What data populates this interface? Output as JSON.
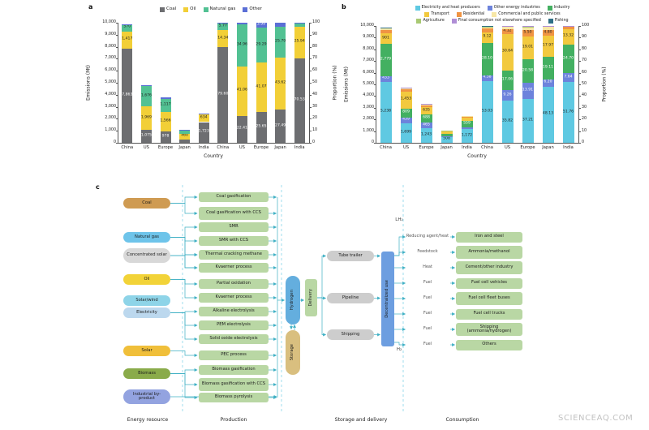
{
  "watermark": "SCIENCEAQ.COM",
  "panel_a": {
    "label": "a"
  },
  "panel_b": {
    "label": "b"
  },
  "panel_c": {
    "label": "c",
    "column_captions": [
      "Energy resource",
      "Production",
      "Storage and delivery",
      "Consumption"
    ],
    "phase_labels": {
      "lh2": "LH₂",
      "h2": "H₂"
    },
    "energy_resources": [
      {
        "label": "Coal",
        "color": "#cf9b52"
      },
      {
        "label": "Natural gas",
        "color": "#6ec4ea"
      },
      {
        "label": "Concentrated solar",
        "color": "#d8d8d8"
      },
      {
        "label": "Oil",
        "color": "#f2d338"
      },
      {
        "label": "Solar/wind",
        "color": "#8ed4e8"
      },
      {
        "label": "Electricity",
        "color": "#bcd8ee"
      },
      {
        "label": "Solar",
        "color": "#f0bf3a"
      },
      {
        "label": "Biomass",
        "color": "#8aab4a"
      },
      {
        "label": "Industrial by-product",
        "color": "#93a3e0"
      }
    ],
    "production_processes": [
      "Coal gasification",
      "Coal gasification with CCS",
      "SMR",
      "SMR with CCS",
      "Thermal cracking methane",
      "Kvaerner process",
      "Partial oxidation",
      "Kvaerner process",
      "Alkaline electrolysis",
      "PEM electrolysis",
      "Solid oxide electrolysis",
      "PEC process",
      "Biomass gasification",
      "Biomass gasification with CCS",
      "Biomass pyrolysis"
    ],
    "carrier": {
      "hydrogen": "Hydrogen",
      "delivery": "Delivery",
      "storage": "Storage"
    },
    "transport_modes": [
      "Tube trailer",
      "Pipeline",
      "Shipping"
    ],
    "decentralized_use": "Decentralized use",
    "consumption": [
      {
        "input": "Reducing agent/heat",
        "use": "Iron and steel"
      },
      {
        "input": "Feedstock",
        "use": "Ammonia/methanol"
      },
      {
        "input": "Heat",
        "use": "Cement/other industry"
      },
      {
        "input": "Fuel",
        "use": "Fuel cell vehicles"
      },
      {
        "input": "Fuel",
        "use": "Fuel cell fleet buses"
      },
      {
        "input": "Fuel",
        "use": "Fuel cell trucks"
      },
      {
        "input": "Fuel",
        "use": "Shipping (ammonia/hydrogen)"
      },
      {
        "input": "Fuel",
        "use": "Others"
      }
    ]
  },
  "chart_data": [
    {
      "panel": "a",
      "type": "bar",
      "stacked": true,
      "bar_groups": [
        "absolute emissions (Mt)",
        "proportion (%)"
      ],
      "categories": [
        "China",
        "US",
        "Europe",
        "Japan",
        "India"
      ],
      "xlabel": "Country",
      "ylabel_left": "Emissions (Mt)",
      "ylabel_right": "Proportion (%)",
      "ylim_left": [
        0,
        10000
      ],
      "ylim_right": [
        0,
        100
      ],
      "legend_position": "top",
      "series": [
        {
          "name": "Coal",
          "color": "#6d6e71",
          "values_mt": [
            7863,
            1075,
            978,
            290,
            1723
          ],
          "values_pct": [
            79.6,
            22.41,
            25.65,
            27.49,
            70.53
          ]
        },
        {
          "name": "Oil",
          "color": "#f2cf37",
          "values_mt": [
            1417,
            1969,
            1566,
            460,
            634
          ],
          "values_pct": [
            14.34,
            41.06,
            41.07,
            43.62,
            25.94
          ]
        },
        {
          "name": "Natural gas",
          "color": "#52c193",
          "values_mt": [
            570,
            1676,
            1117,
            272,
            75
          ],
          "values_pct": [
            5.77,
            34.96,
            29.29,
            25.79,
            3.08
          ]
        },
        {
          "name": "Other",
          "color": "#5b6fd6",
          "values_mt": [
            28,
            75,
            152,
            33,
            11
          ],
          "values_pct": [
            0.29,
            1.57,
            3.99,
            3.1,
            0.45
          ]
        }
      ]
    },
    {
      "panel": "b",
      "type": "bar",
      "stacked": true,
      "bar_groups": [
        "absolute emissions (Mt)",
        "proportion (%)"
      ],
      "categories": [
        "China",
        "US",
        "Europe",
        "Japan",
        "India"
      ],
      "xlabel": "Country",
      "ylabel_left": "Emissions (Mt)",
      "ylabel_right": "Proportion (%)",
      "ylim_left": [
        0,
        10000
      ],
      "ylim_right": [
        0,
        100
      ],
      "legend_position": "top",
      "series": [
        {
          "name": "Electricity and heat producers",
          "color": "#5fc9e2",
          "values_mt": [
            5238,
            1699,
            1243,
            508,
            1172
          ],
          "values_pct": [
            53.03,
            35.82,
            37.21,
            48.13,
            51.76
          ]
        },
        {
          "name": "Other energy industries",
          "color": "#6d83dc",
          "values_mt": [
            433,
            439,
            465,
            65,
            173
          ],
          "values_pct": [
            4.38,
            9.26,
            13.91,
            6.2,
            7.64
          ]
        },
        {
          "name": "Industry",
          "color": "#43b061",
          "values_mt": [
            2779,
            809,
            688,
            202,
            559
          ],
          "values_pct": [
            28.1,
            17.06,
            20.58,
            19.11,
            24.7
          ]
        },
        {
          "name": "Transport",
          "color": "#f2c93e",
          "values_mt": [
            901,
            1453,
            635,
            190,
            302
          ],
          "values_pct": [
            9.12,
            30.64,
            19.01,
            17.97,
            13.32
          ]
        },
        {
          "name": "Residential",
          "color": "#f09443",
          "values_mt": [
            332,
            195,
            184,
            51,
            41
          ],
          "values_pct": [
            3.36,
            4.12,
            5.5,
            4.8,
            1.8
          ]
        },
        {
          "name": "Commercial and public services",
          "color": "#f7e7a6",
          "values_mt": [
            94,
            109,
            94,
            31,
            11
          ],
          "values_pct": [
            0.95,
            2.3,
            2.8,
            2.9,
            0.5
          ]
        },
        {
          "name": "Agriculture",
          "color": "#a9c973",
          "values_mt": [
            54,
            24,
            20,
            6,
            4
          ],
          "values_pct": [
            0.55,
            0.5,
            0.6,
            0.6,
            0.2
          ]
        },
        {
          "name": "Final consumption not elsewhere specified",
          "color": "#b08ed6",
          "values_mt": [
            40,
            12,
            11,
            3,
            1
          ],
          "values_pct": [
            0.41,
            0.25,
            0.34,
            0.25,
            0.06
          ]
        },
        {
          "name": "Fishing",
          "color": "#2e6f86",
          "values_mt": [
            10,
            2,
            2,
            1,
            1
          ],
          "values_pct": [
            0.1,
            0.05,
            0.05,
            0.04,
            0.02
          ]
        }
      ]
    }
  ]
}
